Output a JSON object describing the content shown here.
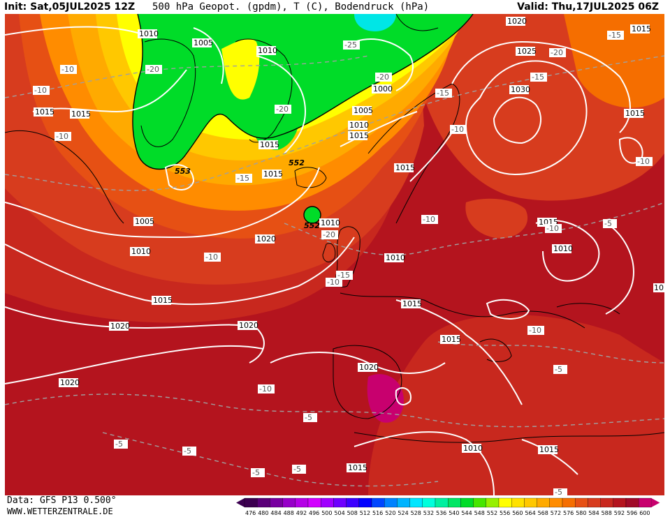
{
  "header": {
    "init": "Init: Sat,05JUL2025 12Z",
    "title": "500 hPa Geopot. (gpdm), T (C), Bodendruck (hPa)",
    "valid": "Valid: Thu,17JUL2025 06Z"
  },
  "footer": {
    "data_source": "Data: GFS P13 0.500°",
    "website": "WWW.WETTERZENTRALE.DE"
  },
  "colors": {
    "ocean_deep": "#b0101e",
    "red": "#c8231e",
    "orange_red": "#dc4618",
    "orange": "#f08c0a",
    "yellow_orange": "#ffc800",
    "yellow": "#ffff00",
    "green": "#00dc28",
    "cyan": "#00e6e6",
    "magenta": "#c8006e",
    "isobar": "#ffffff",
    "coast": "#000000"
  },
  "scale": {
    "values": [
      "476",
      "480",
      "484",
      "488",
      "492",
      "496",
      "500",
      "504",
      "508",
      "512",
      "516",
      "520",
      "524",
      "528",
      "532",
      "536",
      "540",
      "544",
      "548",
      "552",
      "556",
      "560",
      "564",
      "568",
      "572",
      "576",
      "580",
      "584",
      "588",
      "592",
      "596",
      "600"
    ],
    "colors": [
      "#3c0050",
      "#5a0078",
      "#7800a0",
      "#9600c8",
      "#b400e6",
      "#d200ff",
      "#a000ff",
      "#6e00ff",
      "#3c00ff",
      "#0000ff",
      "#0046ff",
      "#0082ff",
      "#00b4ff",
      "#00e6ff",
      "#00ffdc",
      "#00f0a0",
      "#00e664",
      "#00dc28",
      "#46e600",
      "#96f000",
      "#ffff00",
      "#ffe100",
      "#ffc800",
      "#ffaa00",
      "#ff8c00",
      "#f56e00",
      "#e65014",
      "#d73c1e",
      "#c8281e",
      "#b4141e",
      "#a00a28",
      "#c8006e"
    ]
  },
  "isobar_labels": [
    "1010",
    "1005",
    "1010",
    "1020",
    "1015",
    "1015",
    "1015",
    "1000",
    "1005",
    "1010",
    "1015",
    "1015",
    "1015",
    "1015",
    "1025",
    "1030",
    "1015",
    "1015",
    "1005",
    "1010",
    "1010",
    "1020",
    "1015",
    "1010",
    "1010",
    "1015",
    "1015",
    "1020",
    "1020",
    "1015",
    "1020",
    "1020",
    "1015",
    "1010",
    "1015",
    "10"
  ],
  "temp_labels": [
    "-10",
    "-10",
    "-20",
    "-10",
    "-25",
    "-20",
    "-20",
    "-15",
    "-15",
    "-20",
    "-15",
    "-10",
    "-10",
    "-15",
    "-10",
    "-20",
    "-10",
    "-10",
    "-15",
    "-10",
    "-10",
    "-5",
    "-5",
    "-10",
    "-5",
    "-5",
    "-5",
    "-5",
    "-5",
    "-5"
  ],
  "geopot_labels": [
    "553",
    "552",
    "552"
  ]
}
